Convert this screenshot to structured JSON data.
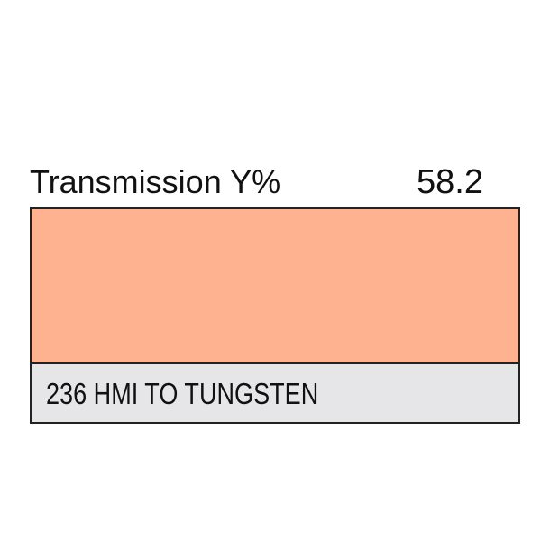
{
  "header": {
    "title": "Transmission Y%",
    "value": "58.2"
  },
  "swatch": {
    "color": "#ffb28f"
  },
  "label": {
    "text": "236 HMI TO TUNGSTEN",
    "background": "#e6e6e8"
  }
}
